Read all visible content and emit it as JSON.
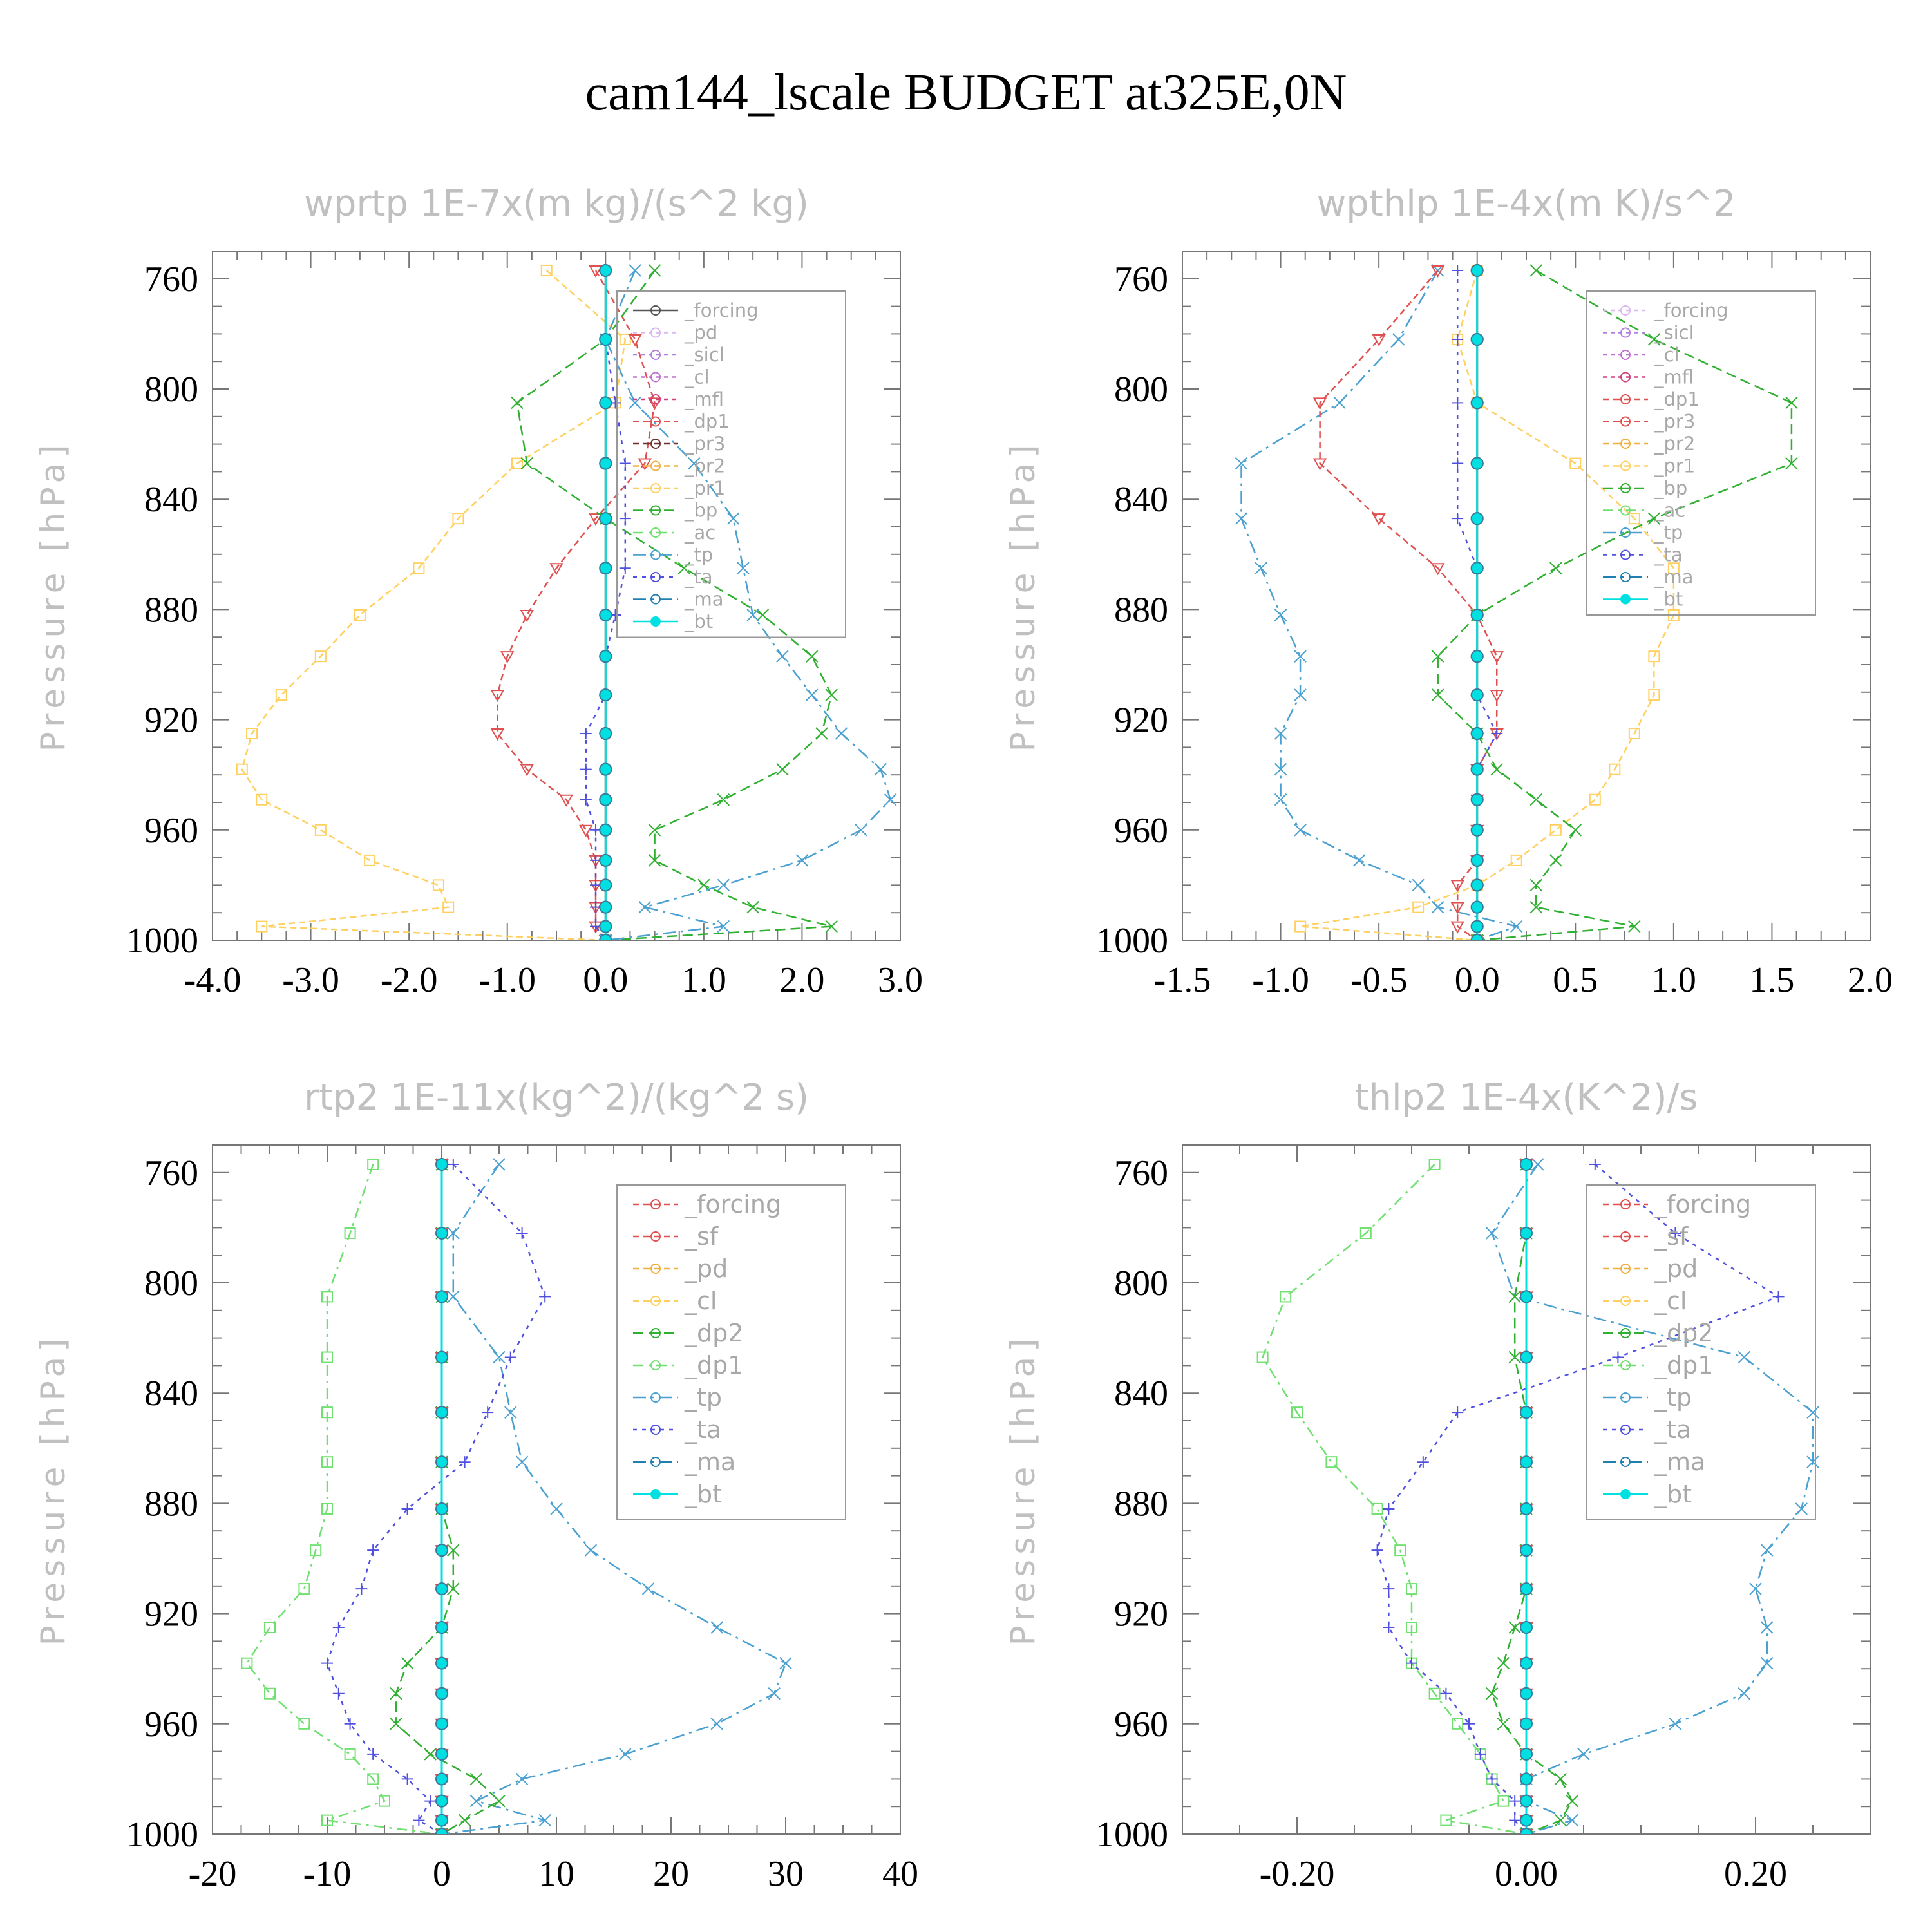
{
  "title": "cam144_lscale  BUDGET at325E,0N",
  "levels": [
    757,
    782,
    805,
    827,
    847,
    865,
    882,
    897,
    911,
    925,
    938,
    949,
    960,
    971,
    980,
    988,
    995,
    1000
  ],
  "colors": {
    "forcing": "#555555",
    "pd": "#d8b8f0",
    "sicl": "#b080e0",
    "cl": "#c070d0",
    "mfl": "#d04080",
    "dp1": "#e05050",
    "pr3": "#703030",
    "pr2": "#f0b040",
    "pr1": "#ffd060",
    "bp": "#30b030",
    "ac": "#70e070",
    "tp": "#4aa0d0",
    "ta": "#5050e0",
    "ma": "#2080b0",
    "bt": "#00e0e0"
  },
  "chart_data": [
    {
      "type": "line",
      "title": "wprtp   1E-7x(m kg)/(s^2 kg)",
      "ylabel": "Pressure [hPa]",
      "xlim": [
        -4.0,
        3.0
      ],
      "ylim": [
        1000,
        750
      ],
      "xticks": [
        "-4.0",
        "-3.0",
        "-2.0",
        "-1.0",
        "0.0",
        "1.0",
        "2.0",
        "3.0"
      ],
      "yticks": [
        "760",
        "800",
        "840",
        "880",
        "920",
        "960",
        "1000"
      ],
      "legend": [
        "_forcing",
        "_pd",
        "_sicl",
        "_cl",
        "_mfl",
        "_dp1",
        "_pr3",
        "_pr2",
        "_pr1",
        "_bp",
        "_ac",
        "_tp",
        "_ta",
        "_ma",
        "_bt"
      ],
      "series": [
        {
          "name": "_pr1",
          "key": "pr1",
          "values": [
            -0.6,
            0.2,
            0.1,
            -0.9,
            -1.5,
            -1.9,
            -2.5,
            -2.9,
            -3.3,
            -3.6,
            -3.7,
            -3.5,
            -2.9,
            -2.4,
            -1.7,
            -1.6,
            -3.5,
            0.0
          ]
        },
        {
          "name": "_dp1",
          "key": "dp1",
          "values": [
            -0.1,
            0.3,
            0.5,
            0.4,
            -0.1,
            -0.5,
            -0.8,
            -1.0,
            -1.1,
            -1.1,
            -0.8,
            -0.4,
            -0.2,
            -0.1,
            -0.1,
            -0.1,
            -0.1,
            0.0
          ]
        },
        {
          "name": "_bp",
          "key": "bp",
          "values": [
            0.5,
            0.0,
            -0.9,
            -0.8,
            0.0,
            0.8,
            1.6,
            2.1,
            2.3,
            2.2,
            1.8,
            1.2,
            0.5,
            0.5,
            1.0,
            1.5,
            2.3,
            0.0
          ]
        },
        {
          "name": "_tp",
          "key": "tp",
          "values": [
            0.3,
            0.0,
            0.3,
            0.9,
            1.3,
            1.4,
            1.5,
            1.8,
            2.1,
            2.4,
            2.8,
            2.9,
            2.6,
            2.0,
            1.2,
            0.4,
            1.2,
            0.0
          ]
        },
        {
          "name": "_ta",
          "key": "ta",
          "values": [
            0.0,
            0.0,
            0.1,
            0.2,
            0.2,
            0.2,
            0.1,
            0.0,
            0.0,
            -0.2,
            -0.2,
            -0.2,
            -0.1,
            -0.1,
            -0.1,
            -0.1,
            -0.1,
            0.0
          ]
        },
        {
          "name": "_forcing",
          "key": "forcing",
          "values": [
            0,
            0,
            0,
            0,
            0,
            0,
            0,
            0,
            0,
            0,
            0,
            0,
            0,
            0,
            0,
            0,
            0,
            0
          ]
        },
        {
          "name": "_bt",
          "key": "bt",
          "values": [
            0,
            0,
            0,
            0,
            0,
            0,
            0,
            0,
            0,
            0,
            0,
            0,
            0,
            0,
            0,
            0,
            0,
            0
          ]
        }
      ]
    },
    {
      "type": "line",
      "title": "wpthlp   1E-4x(m K)/s^2",
      "ylabel": "Pressure [hPa]",
      "xlim": [
        -1.5,
        2.0
      ],
      "ylim": [
        1000,
        750
      ],
      "xticks": [
        "-1.5",
        "-1.0",
        "-0.5",
        "0.0",
        "0.5",
        "1.0",
        "1.5",
        "2.0"
      ],
      "yticks": [
        "760",
        "800",
        "840",
        "880",
        "920",
        "960",
        "1000"
      ],
      "legend": [
        "_forcing",
        "_sicl",
        "_cl",
        "_mfl",
        "_dp1",
        "_pr3",
        "_pr2",
        "_pr1",
        "_bp",
        "_ac",
        "_tp",
        "_ta",
        "_ma",
        "_bt"
      ],
      "series": [
        {
          "name": "_tp",
          "key": "tp",
          "values": [
            -0.2,
            -0.4,
            -0.7,
            -1.2,
            -1.2,
            -1.1,
            -1.0,
            -0.9,
            -0.9,
            -1.0,
            -1.0,
            -1.0,
            -0.9,
            -0.6,
            -0.3,
            -0.2,
            0.2,
            0.0
          ]
        },
        {
          "name": "_dp1",
          "key": "dp1",
          "values": [
            -0.2,
            -0.5,
            -0.8,
            -0.8,
            -0.5,
            -0.2,
            0.0,
            0.1,
            0.1,
            0.1,
            0.0,
            0.0,
            0.0,
            0.0,
            -0.1,
            -0.1,
            -0.1,
            0.0
          ]
        },
        {
          "name": "_pr1",
          "key": "pr1",
          "values": [
            0.0,
            -0.1,
            0.0,
            0.5,
            0.8,
            1.0,
            1.0,
            0.9,
            0.9,
            0.8,
            0.7,
            0.6,
            0.4,
            0.2,
            0.0,
            -0.3,
            -0.9,
            0.0
          ]
        },
        {
          "name": "_bp",
          "key": "bp",
          "values": [
            0.3,
            0.9,
            1.6,
            1.6,
            0.9,
            0.4,
            0.0,
            -0.2,
            -0.2,
            0.0,
            0.1,
            0.3,
            0.5,
            0.4,
            0.3,
            0.3,
            0.8,
            0.0
          ]
        },
        {
          "name": "_ta",
          "key": "ta",
          "values": [
            -0.1,
            -0.1,
            -0.1,
            -0.1,
            -0.1,
            0.0,
            0.0,
            0.0,
            0.0,
            0.1,
            0.0,
            0.0,
            0.0,
            0.0,
            0.0,
            0.0,
            0.0,
            0.0
          ]
        },
        {
          "name": "_forcing",
          "key": "forcing",
          "values": [
            0,
            0,
            0,
            0,
            0,
            0,
            0,
            0,
            0,
            0,
            0,
            0,
            0,
            0,
            0,
            0,
            0,
            0
          ]
        },
        {
          "name": "_bt",
          "key": "bt",
          "values": [
            0,
            0,
            0,
            0,
            0,
            0,
            0,
            0,
            0,
            0,
            0,
            0,
            0,
            0,
            0,
            0,
            0,
            0
          ]
        }
      ]
    },
    {
      "type": "line",
      "title": "rtp2   1E-11x(kg^2)/(kg^2 s)",
      "ylabel": "Pressure [hPa]",
      "xlim": [
        -20,
        40
      ],
      "ylim": [
        1000,
        750
      ],
      "xticks": [
        "-20",
        "-10",
        "0",
        "10",
        "20",
        "30",
        "40"
      ],
      "yticks": [
        "760",
        "800",
        "840",
        "880",
        "920",
        "960",
        "1000"
      ],
      "legend": [
        "_forcing",
        "_sf",
        "_pd",
        "_cl",
        "_dp2",
        "_dp1",
        "_tp",
        "_ta",
        "_ma",
        "_bt"
      ],
      "series": [
        {
          "name": "_dp1",
          "key": "ac",
          "values": [
            -6,
            -8,
            -10,
            -10,
            -10,
            -10,
            -10,
            -11,
            -12,
            -15,
            -17,
            -15,
            -12,
            -8,
            -6,
            -5,
            -10,
            0
          ]
        },
        {
          "name": "_tp",
          "key": "tp",
          "values": [
            5,
            1,
            1,
            5,
            6,
            7,
            10,
            13,
            18,
            24,
            30,
            29,
            24,
            16,
            7,
            3,
            9,
            0
          ]
        },
        {
          "name": "_ta",
          "key": "ta",
          "values": [
            1,
            7,
            9,
            6,
            4,
            2,
            -3,
            -6,
            -7,
            -9,
            -10,
            -9,
            -8,
            -6,
            -3,
            -1,
            -2,
            0
          ]
        },
        {
          "name": "_dp2",
          "key": "bp",
          "values": [
            0,
            0,
            0,
            0,
            0,
            0,
            0,
            1,
            1,
            0,
            -3,
            -4,
            -4,
            -1,
            3,
            5,
            2,
            0
          ]
        },
        {
          "name": "_forcing",
          "key": "dp1",
          "values": [
            0,
            0,
            0,
            0,
            0,
            0,
            0,
            0,
            0,
            0,
            0,
            0,
            0,
            0,
            0,
            0,
            0,
            0
          ]
        },
        {
          "name": "_bt",
          "key": "bt",
          "values": [
            0,
            0,
            0,
            0,
            0,
            0,
            0,
            0,
            0,
            0,
            0,
            0,
            0,
            0,
            0,
            0,
            0,
            0
          ]
        }
      ]
    },
    {
      "type": "line",
      "title": "thlp2   1E-4x(K^2)/s",
      "ylabel": "Pressure [hPa]",
      "xlim": [
        -0.3,
        0.3
      ],
      "ylim": [
        1000,
        750
      ],
      "xticks": [
        "-0.20",
        "0.00",
        "0.20"
      ],
      "xtick_values": [
        -0.2,
        0.0,
        0.2
      ],
      "yticks": [
        "760",
        "800",
        "840",
        "880",
        "920",
        "960",
        "1000"
      ],
      "legend": [
        "_forcing",
        "_sf",
        "_pd",
        "_cl",
        "_dp2",
        "_dp1",
        "_tp",
        "_ta",
        "_ma",
        "_bt"
      ],
      "series": [
        {
          "name": "_dp1",
          "key": "ac",
          "values": [
            -0.08,
            -0.14,
            -0.21,
            -0.23,
            -0.2,
            -0.17,
            -0.13,
            -0.11,
            -0.1,
            -0.1,
            -0.1,
            -0.08,
            -0.06,
            -0.04,
            -0.03,
            -0.02,
            -0.07,
            0.0
          ]
        },
        {
          "name": "_tp",
          "key": "tp",
          "values": [
            0.01,
            -0.03,
            -0.01,
            0.19,
            0.25,
            0.25,
            0.24,
            0.21,
            0.2,
            0.21,
            0.21,
            0.19,
            0.13,
            0.05,
            0.0,
            0.0,
            0.04,
            0.0
          ]
        },
        {
          "name": "_ta",
          "key": "ta",
          "values": [
            0.06,
            0.13,
            0.22,
            0.08,
            -0.06,
            -0.09,
            -0.12,
            -0.13,
            -0.12,
            -0.12,
            -0.1,
            -0.07,
            -0.05,
            -0.04,
            -0.03,
            -0.01,
            -0.01,
            0.0
          ]
        },
        {
          "name": "_dp2",
          "key": "bp",
          "values": [
            0.0,
            0.0,
            -0.01,
            -0.01,
            0.0,
            0.0,
            0.0,
            0.0,
            0.0,
            -0.01,
            -0.02,
            -0.03,
            -0.02,
            0.0,
            0.03,
            0.04,
            0.03,
            0.0
          ]
        },
        {
          "name": "_forcing",
          "key": "dp1",
          "values": [
            0,
            0,
            0,
            0,
            0,
            0,
            0,
            0,
            0,
            0,
            0,
            0,
            0,
            0,
            0,
            0,
            0,
            0
          ]
        },
        {
          "name": "_bt",
          "key": "bt",
          "values": [
            0,
            0,
            0,
            0,
            0,
            0,
            0,
            0,
            0,
            0,
            0,
            0,
            0,
            0,
            0,
            0,
            0,
            0
          ]
        }
      ]
    }
  ]
}
